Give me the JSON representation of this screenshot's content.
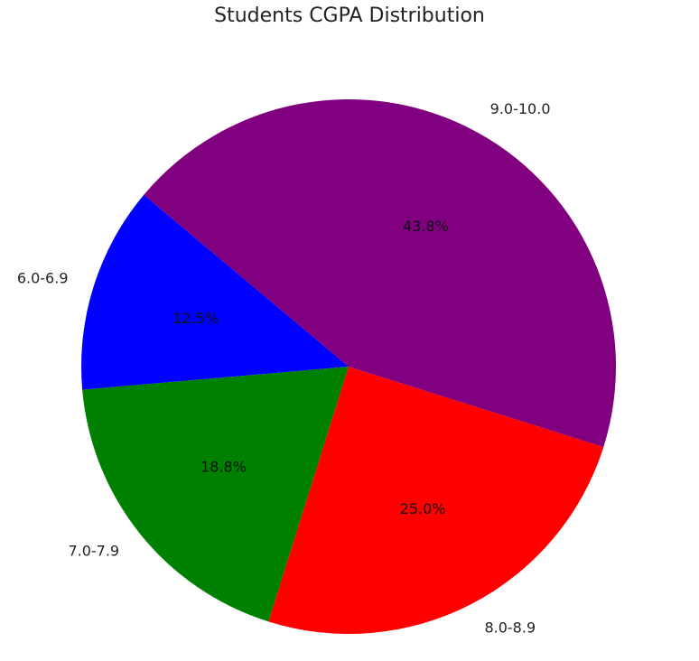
{
  "chart_data": {
    "type": "pie",
    "title": "Students CGPA Distribution",
    "categories": [
      "6.0-6.9",
      "7.0-7.9",
      "8.0-8.9",
      "9.0-10.0"
    ],
    "values": [
      12.5,
      18.8,
      25.0,
      43.8
    ],
    "value_labels": [
      "12.5%",
      "18.8%",
      "25.0%",
      "43.8%"
    ],
    "colors": [
      "#0000ff",
      "#008000",
      "#ff0000",
      "#800080"
    ],
    "start_angle_deg": 140,
    "direction": "counterclockwise",
    "legend": "none"
  }
}
